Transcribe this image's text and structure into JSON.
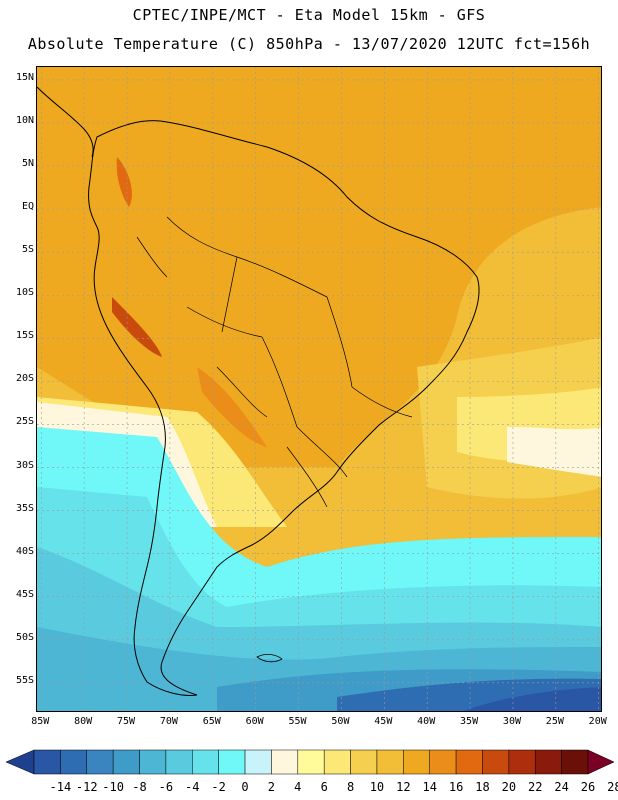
{
  "header": {
    "line1": "CPTEC/INPE/MCT -  Eta Model 15km - GFS",
    "line2": "Absolute Temperature (C) 850hPa - 13/07/2020 12UTC fct=156h"
  },
  "map": {
    "lat_labels": [
      "15N",
      "10N",
      "5N",
      "EQ",
      "5S",
      "10S",
      "15S",
      "20S",
      "25S",
      "30S",
      "35S",
      "40S",
      "45S",
      "50S",
      "55S"
    ],
    "lon_labels": [
      "85W",
      "80W",
      "75W",
      "70W",
      "65W",
      "60W",
      "55W",
      "50W",
      "45W",
      "40W",
      "35W",
      "30W",
      "25W",
      "20W"
    ],
    "lat_range": [
      16.5,
      -58.5
    ],
    "lon_range": [
      -85.5,
      -19.5
    ]
  },
  "legend": {
    "labels": [
      "-14",
      "-12",
      "-10",
      "-8",
      "-6",
      "-4",
      "-2",
      "0",
      "2",
      "4",
      "6",
      "8",
      "10",
      "12",
      "14",
      "16",
      "18",
      "20",
      "22",
      "24",
      "26",
      "28"
    ],
    "colors": [
      "#1f3f8f",
      "#2a56a6",
      "#2f6db3",
      "#3a84bf",
      "#3f9cc8",
      "#4cb6d4",
      "#5acbdf",
      "#66e3ea",
      "#70f7f7",
      "#c9f3fb",
      "#fff7dd",
      "#fffa9a",
      "#fbe877",
      "#f5d04f",
      "#f2bd37",
      "#efa921",
      "#ea8d19",
      "#e1690f",
      "#c84b0d",
      "#ac2e0c",
      "#8a1a0c",
      "#6a1008",
      "#7a0026"
    ]
  }
}
